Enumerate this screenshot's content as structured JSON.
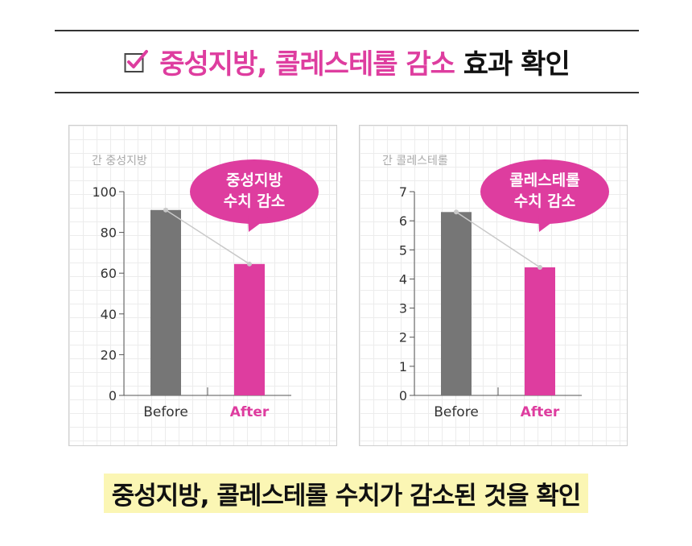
{
  "header": {
    "title_highlight": "중성지방, 콜레스테롤 감소",
    "title_rest": "효과 확인",
    "accent_color": "#de3d9f",
    "icon": "checkbox-check-icon"
  },
  "callouts": [
    "중성지방\n수치 감소",
    "콜레스테롤\n수치 감소"
  ],
  "caption": "중성지방, 콜레스테롤 수치가 감소된 것을 확인",
  "chart_data": [
    {
      "type": "bar",
      "title": "간 중성지방",
      "categories": [
        "Before",
        "After"
      ],
      "values": [
        91,
        64.5
      ],
      "ylim": [
        0,
        100
      ],
      "yticks": [
        0,
        20,
        40,
        60,
        80,
        100
      ],
      "colors": [
        "#767676",
        "#de3d9f"
      ],
      "grid": true
    },
    {
      "type": "bar",
      "title": "간 콜레스테롤",
      "categories": [
        "Before",
        "After"
      ],
      "values": [
        6.3,
        4.4
      ],
      "ylim": [
        0,
        7
      ],
      "yticks": [
        0,
        1,
        2,
        3,
        4,
        5,
        6,
        7
      ],
      "colors": [
        "#767676",
        "#de3d9f"
      ],
      "grid": true
    }
  ]
}
